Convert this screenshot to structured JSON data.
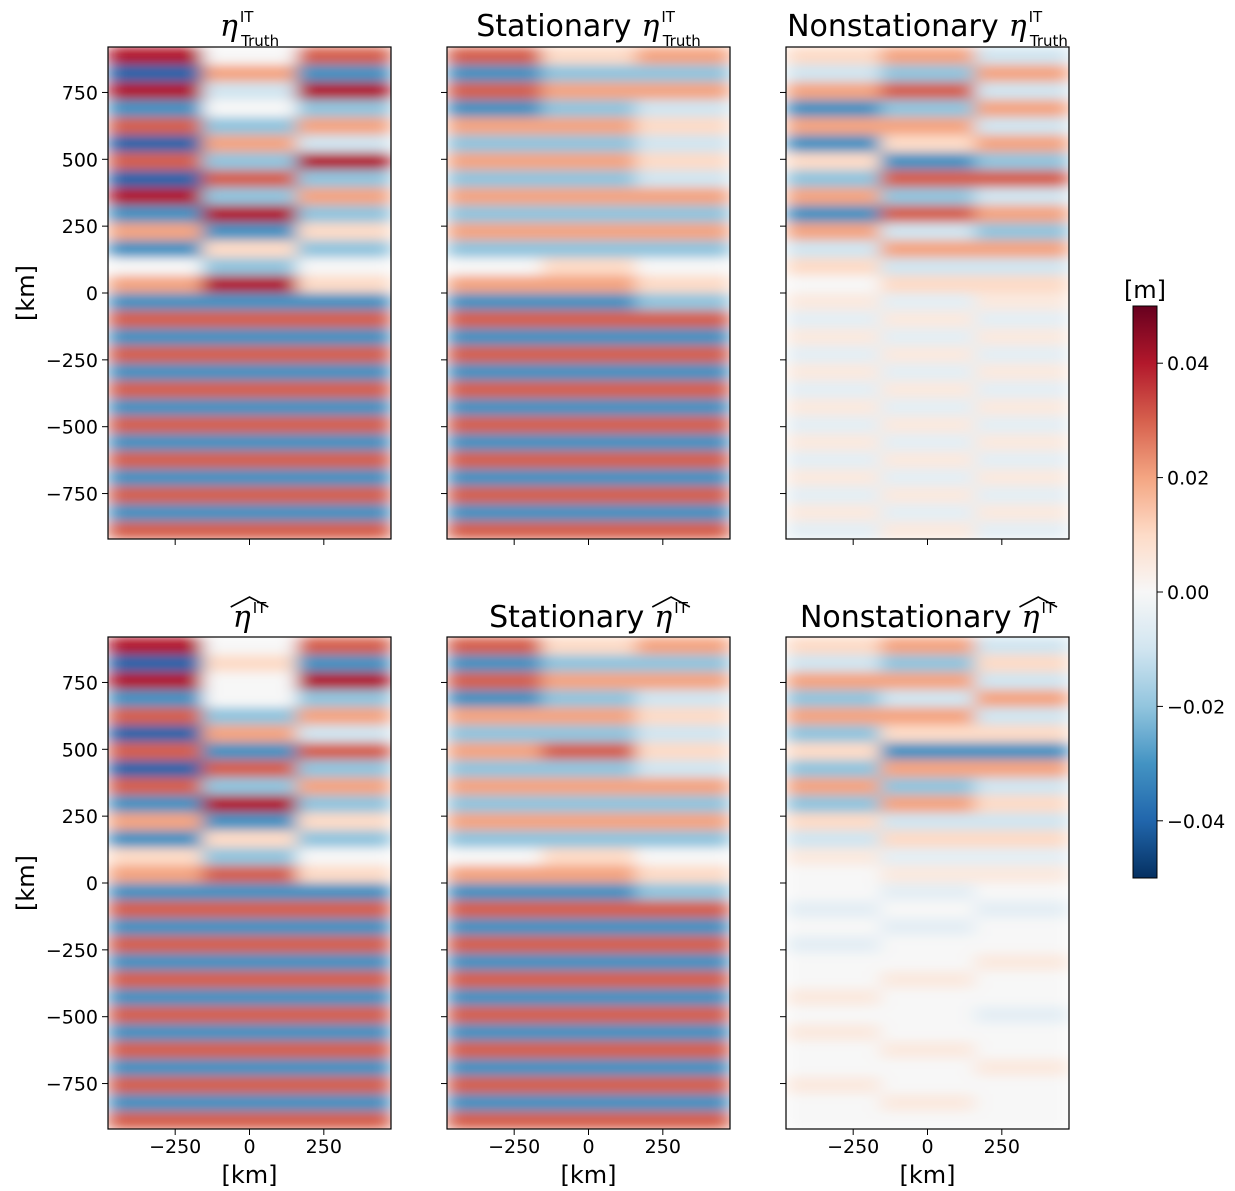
{
  "chart_data": {
    "type": "heatmap",
    "colormap": "RdBu_r",
    "clim": [
      -0.05,
      0.05
    ],
    "xlim": [
      -476,
      476
    ],
    "ylim": [
      -920,
      920
    ],
    "xticks": [
      {
        "value": -250,
        "label": "−250"
      },
      0,
      250
    ],
    "yticks": [
      750,
      500,
      250,
      0,
      {
        "value": -250,
        "label": "−250"
      },
      {
        "value": -500,
        "label": "−500"
      },
      {
        "value": -750,
        "label": "−750"
      }
    ],
    "xlabel": "[km]",
    "ylabel": "[km]",
    "colorbar": {
      "label": "[m]",
      "ticks": [
        {
          "value": -0.04,
          "label": "−0.04"
        },
        {
          "value": -0.02,
          "label": "−0.02"
        },
        {
          "value": 0,
          "label": "0.00"
        },
        0.02,
        0.04
      ]
    },
    "panels": [
      {
        "title_symbol": "η",
        "title_sup": "IT",
        "title_sub": "Truth",
        "values": [
          [
            0.04,
            0.0,
            0.03
          ],
          [
            -0.04,
            0.02,
            -0.03
          ],
          [
            0.04,
            -0.01,
            0.04
          ],
          [
            -0.03,
            0.0,
            -0.02
          ],
          [
            0.03,
            -0.02,
            0.02
          ],
          [
            -0.04,
            0.02,
            -0.01
          ],
          [
            0.03,
            -0.02,
            0.04
          ],
          [
            -0.04,
            0.03,
            -0.02
          ],
          [
            0.04,
            -0.02,
            0.02
          ],
          [
            -0.03,
            0.04,
            -0.02
          ],
          [
            0.02,
            -0.03,
            0.01
          ],
          [
            -0.03,
            0.01,
            -0.02
          ],
          [
            0.0,
            -0.02,
            0.0
          ],
          [
            0.02,
            0.04,
            0.01
          ],
          [
            -0.03,
            -0.03,
            -0.03
          ],
          [
            0.03,
            0.03,
            0.03
          ],
          [
            -0.03,
            -0.03,
            -0.03
          ],
          [
            0.03,
            0.03,
            0.03
          ],
          [
            -0.03,
            -0.03,
            -0.03
          ],
          [
            0.03,
            0.03,
            0.03
          ],
          [
            -0.03,
            -0.03,
            -0.03
          ],
          [
            0.03,
            0.03,
            0.03
          ],
          [
            -0.03,
            -0.03,
            -0.03
          ],
          [
            0.03,
            0.03,
            0.03
          ],
          [
            -0.03,
            -0.03,
            -0.03
          ],
          [
            0.03,
            0.03,
            0.03
          ],
          [
            -0.03,
            -0.03,
            -0.03
          ],
          [
            0.03,
            0.03,
            0.03
          ]
        ]
      },
      {
        "title_prefix": "Stationary",
        "title_symbol": "η",
        "title_sup": "IT",
        "title_sub": "Truth",
        "values": [
          [
            0.03,
            0.01,
            0.02
          ],
          [
            -0.03,
            -0.02,
            -0.02
          ],
          [
            0.03,
            0.02,
            0.02
          ],
          [
            -0.03,
            -0.02,
            -0.01
          ],
          [
            0.02,
            0.02,
            0.01
          ],
          [
            -0.02,
            -0.02,
            -0.01
          ],
          [
            0.02,
            0.02,
            0.01
          ],
          [
            -0.02,
            -0.02,
            -0.01
          ],
          [
            0.02,
            0.02,
            0.02
          ],
          [
            -0.02,
            -0.02,
            -0.02
          ],
          [
            0.02,
            0.02,
            0.02
          ],
          [
            -0.02,
            -0.02,
            -0.02
          ],
          [
            0.0,
            0.01,
            0.0
          ],
          [
            0.02,
            0.02,
            0.01
          ],
          [
            -0.03,
            -0.03,
            -0.02
          ],
          [
            0.03,
            0.03,
            0.03
          ],
          [
            -0.03,
            -0.03,
            -0.03
          ],
          [
            0.03,
            0.03,
            0.03
          ],
          [
            -0.03,
            -0.03,
            -0.03
          ],
          [
            0.03,
            0.03,
            0.03
          ],
          [
            -0.03,
            -0.03,
            -0.03
          ],
          [
            0.03,
            0.03,
            0.03
          ],
          [
            -0.03,
            -0.03,
            -0.03
          ],
          [
            0.03,
            0.03,
            0.03
          ],
          [
            -0.03,
            -0.03,
            -0.03
          ],
          [
            0.03,
            0.03,
            0.03
          ],
          [
            -0.03,
            -0.03,
            -0.03
          ],
          [
            0.03,
            0.03,
            0.03
          ]
        ]
      },
      {
        "title_prefix": "Nonstationary",
        "title_symbol": "η",
        "title_sup": "IT",
        "title_sub": "Truth",
        "values": [
          [
            0.01,
            0.02,
            -0.01
          ],
          [
            -0.01,
            -0.02,
            0.02
          ],
          [
            0.02,
            0.03,
            -0.01
          ],
          [
            -0.03,
            -0.02,
            0.02
          ],
          [
            0.02,
            0.02,
            -0.01
          ],
          [
            -0.03,
            0.01,
            0.02
          ],
          [
            0.01,
            -0.03,
            -0.02
          ],
          [
            -0.02,
            0.03,
            0.03
          ],
          [
            0.02,
            -0.02,
            -0.01
          ],
          [
            -0.03,
            0.03,
            0.02
          ],
          [
            0.02,
            -0.01,
            -0.02
          ],
          [
            -0.01,
            0.02,
            0.02
          ],
          [
            0.01,
            -0.01,
            -0.01
          ],
          [
            0.0,
            0.01,
            0.01
          ],
          [
            0.005,
            -0.005,
            0.005
          ],
          [
            -0.005,
            0.005,
            -0.005
          ],
          [
            0.005,
            -0.005,
            0.005
          ],
          [
            -0.005,
            0.005,
            -0.005
          ],
          [
            0.005,
            -0.005,
            0.005
          ],
          [
            -0.005,
            0.005,
            -0.005
          ],
          [
            0.005,
            -0.005,
            0.005
          ],
          [
            -0.005,
            0.005,
            -0.005
          ],
          [
            0.005,
            -0.005,
            0.005
          ],
          [
            -0.005,
            0.005,
            -0.005
          ],
          [
            0.005,
            -0.005,
            0.005
          ],
          [
            -0.005,
            0.005,
            -0.005
          ],
          [
            0.005,
            -0.005,
            0.005
          ],
          [
            -0.005,
            0.005,
            -0.005
          ]
        ]
      },
      {
        "title_symbol": "η",
        "title_sup": "IT",
        "hat": true,
        "values": [
          [
            0.04,
            0.0,
            0.03
          ],
          [
            -0.04,
            0.01,
            -0.03
          ],
          [
            0.04,
            0.0,
            0.04
          ],
          [
            -0.03,
            0.0,
            -0.02
          ],
          [
            0.03,
            -0.02,
            0.02
          ],
          [
            -0.04,
            0.02,
            -0.01
          ],
          [
            0.03,
            -0.03,
            0.03
          ],
          [
            -0.04,
            0.03,
            -0.02
          ],
          [
            0.03,
            -0.02,
            0.02
          ],
          [
            -0.03,
            0.04,
            -0.02
          ],
          [
            0.02,
            -0.03,
            0.01
          ],
          [
            -0.03,
            0.01,
            -0.02
          ],
          [
            0.01,
            -0.02,
            0.0
          ],
          [
            0.02,
            0.03,
            0.01
          ],
          [
            -0.03,
            -0.03,
            -0.03
          ],
          [
            0.03,
            0.03,
            0.03
          ],
          [
            -0.03,
            -0.03,
            -0.03
          ],
          [
            0.03,
            0.03,
            0.03
          ],
          [
            -0.03,
            -0.03,
            -0.03
          ],
          [
            0.03,
            0.03,
            0.03
          ],
          [
            -0.03,
            -0.03,
            -0.03
          ],
          [
            0.03,
            0.03,
            0.03
          ],
          [
            -0.03,
            -0.03,
            -0.03
          ],
          [
            0.03,
            0.03,
            0.03
          ],
          [
            -0.03,
            -0.03,
            -0.03
          ],
          [
            0.03,
            0.03,
            0.03
          ],
          [
            -0.03,
            -0.03,
            -0.03
          ],
          [
            0.03,
            0.03,
            0.03
          ]
        ]
      },
      {
        "title_prefix": "Stationary",
        "title_symbol": "η",
        "title_sup": "IT",
        "hat": true,
        "values": [
          [
            0.03,
            0.01,
            0.02
          ],
          [
            -0.03,
            -0.02,
            -0.02
          ],
          [
            0.03,
            0.02,
            0.02
          ],
          [
            -0.03,
            -0.02,
            -0.01
          ],
          [
            0.02,
            0.02,
            0.01
          ],
          [
            -0.02,
            -0.02,
            -0.01
          ],
          [
            0.02,
            0.03,
            0.01
          ],
          [
            -0.02,
            -0.02,
            -0.01
          ],
          [
            0.02,
            0.02,
            0.02
          ],
          [
            -0.02,
            -0.02,
            -0.02
          ],
          [
            0.02,
            0.02,
            0.02
          ],
          [
            -0.02,
            -0.02,
            -0.02
          ],
          [
            0.0,
            0.01,
            0.0
          ],
          [
            0.02,
            0.02,
            0.01
          ],
          [
            -0.03,
            -0.03,
            -0.02
          ],
          [
            0.03,
            0.03,
            0.03
          ],
          [
            -0.03,
            -0.03,
            -0.03
          ],
          [
            0.03,
            0.03,
            0.03
          ],
          [
            -0.03,
            -0.03,
            -0.03
          ],
          [
            0.03,
            0.03,
            0.03
          ],
          [
            -0.03,
            -0.03,
            -0.03
          ],
          [
            0.03,
            0.03,
            0.03
          ],
          [
            -0.03,
            -0.03,
            -0.03
          ],
          [
            0.03,
            0.03,
            0.03
          ],
          [
            -0.03,
            -0.03,
            -0.03
          ],
          [
            0.03,
            0.03,
            0.03
          ],
          [
            -0.03,
            -0.03,
            -0.03
          ],
          [
            0.03,
            0.03,
            0.03
          ]
        ]
      },
      {
        "title_prefix": "Nonstationary",
        "title_symbol": "η",
        "title_sup": "IT",
        "hat": true,
        "values": [
          [
            0.01,
            0.02,
            -0.01
          ],
          [
            -0.01,
            -0.02,
            0.01
          ],
          [
            0.02,
            0.02,
            -0.01
          ],
          [
            -0.02,
            -0.01,
            0.02
          ],
          [
            0.02,
            0.02,
            -0.01
          ],
          [
            -0.02,
            0.01,
            0.01
          ],
          [
            0.01,
            -0.03,
            -0.03
          ],
          [
            -0.02,
            0.02,
            0.02
          ],
          [
            0.02,
            -0.02,
            -0.01
          ],
          [
            -0.02,
            0.02,
            0.01
          ],
          [
            0.01,
            -0.01,
            -0.01
          ],
          [
            -0.01,
            0.01,
            0.01
          ],
          [
            0.005,
            -0.005,
            -0.005
          ],
          [
            0.0,
            0.005,
            0.005
          ],
          [
            0.0,
            -0.005,
            0.0
          ],
          [
            -0.005,
            0.0,
            -0.005
          ],
          [
            0.0,
            -0.005,
            0.0
          ],
          [
            -0.005,
            0.0,
            0.0
          ],
          [
            0.0,
            0.0,
            0.005
          ],
          [
            0.0,
            0.005,
            0.0
          ],
          [
            0.005,
            0.0,
            0.0
          ],
          [
            0.0,
            0.0,
            -0.005
          ],
          [
            0.005,
            0.0,
            0.0
          ],
          [
            0.0,
            0.005,
            0.0
          ],
          [
            0.0,
            0.0,
            0.005
          ],
          [
            0.005,
            0.0,
            0.0
          ],
          [
            0.0,
            0.005,
            0.0
          ],
          [
            0.0,
            0.0,
            0.0
          ]
        ]
      }
    ]
  }
}
